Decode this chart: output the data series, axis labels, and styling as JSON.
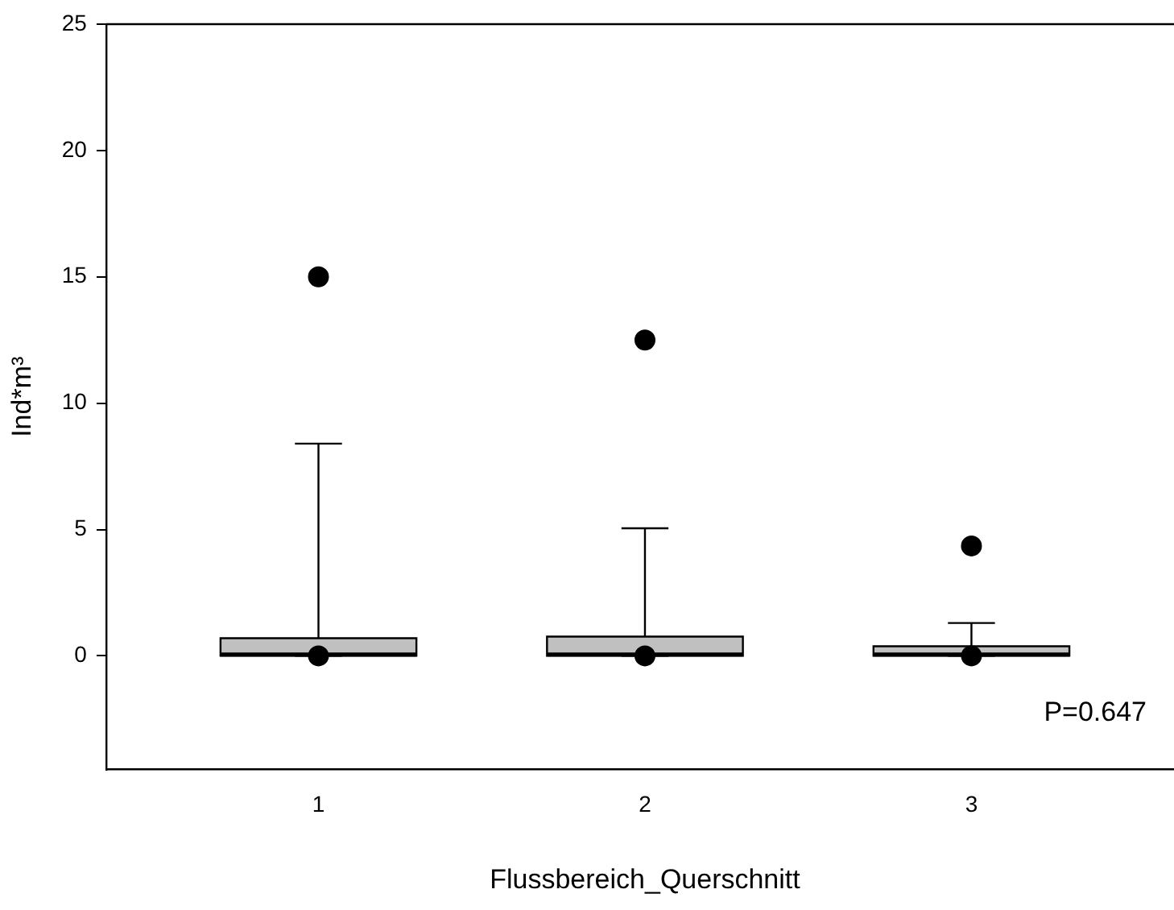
{
  "chart_data": {
    "type": "box",
    "xlabel": "Flussbereich_Querschnitt",
    "ylabel": "Ind*m³",
    "categories": [
      "1",
      "2",
      "3"
    ],
    "boxes": [
      {
        "low": 0,
        "q1": 0,
        "median": 0.05,
        "q3": 0.7,
        "high": 8.4,
        "outliers": [
          15,
          0
        ]
      },
      {
        "low": 0,
        "q1": 0,
        "median": 0.05,
        "q3": 0.76,
        "high": 5.05,
        "outliers": [
          12.5,
          0
        ]
      },
      {
        "low": 0,
        "q1": 0,
        "median": 0.05,
        "q3": 0.38,
        "high": 1.3,
        "outliers": [
          4.35,
          0
        ]
      }
    ],
    "color": "#c0c0c0",
    "ylim": [
      -4.5,
      25
    ],
    "yticks": [
      0,
      5,
      10,
      15,
      20,
      25
    ],
    "grid": false,
    "legend": false,
    "marker": "circle",
    "annotations": [
      "P=0.647"
    ]
  }
}
